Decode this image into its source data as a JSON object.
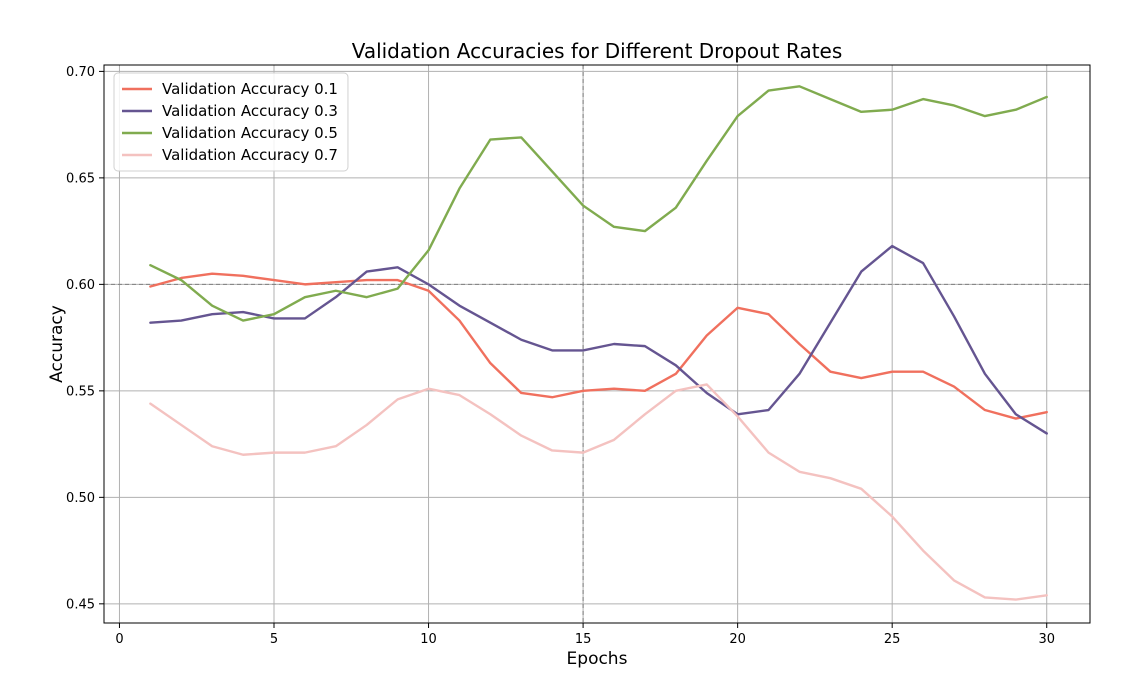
{
  "chart_data": {
    "type": "line",
    "title": "Validation Accuracies for Different Dropout Rates",
    "xlabel": "Epochs",
    "ylabel": "Accuracy",
    "xlim": [
      -0.5,
      31.4
    ],
    "ylim": [
      0.441,
      0.703
    ],
    "xticks": [
      0,
      5,
      10,
      15,
      20,
      25,
      30
    ],
    "yticks": [
      0.45,
      0.5,
      0.55,
      0.6,
      0.65,
      0.7
    ],
    "xtick_labels": [
      "0",
      "5",
      "10",
      "15",
      "20",
      "25",
      "30"
    ],
    "ytick_labels": [
      "0.45",
      "0.50",
      "0.55",
      "0.60",
      "0.65",
      "0.70"
    ],
    "grid": true,
    "reference_lines": {
      "x": 15,
      "y": 0.6
    },
    "legend_position": "top-left",
    "x": [
      1,
      2,
      3,
      4,
      5,
      6,
      7,
      8,
      9,
      10,
      11,
      12,
      13,
      14,
      15,
      16,
      17,
      18,
      19,
      20,
      21,
      22,
      23,
      24,
      25,
      26,
      27,
      28,
      29,
      30
    ],
    "series": [
      {
        "name": "Validation Accuracy 0.1",
        "color": "#f0705e",
        "values": [
          0.599,
          0.603,
          0.605,
          0.604,
          0.602,
          0.6,
          0.601,
          0.602,
          0.602,
          0.597,
          0.583,
          0.563,
          0.549,
          0.547,
          0.55,
          0.551,
          0.55,
          0.558,
          0.576,
          0.589,
          0.586,
          0.572,
          0.559,
          0.556,
          0.559,
          0.559,
          0.552,
          0.541,
          0.537,
          0.54
        ]
      },
      {
        "name": "Validation Accuracy 0.3",
        "color": "#655591",
        "values": [
          0.582,
          0.583,
          0.586,
          0.587,
          0.584,
          0.584,
          0.594,
          0.606,
          0.608,
          0.6,
          0.59,
          0.582,
          0.574,
          0.569,
          0.569,
          0.572,
          0.571,
          0.562,
          0.549,
          0.539,
          0.541,
          0.558,
          0.582,
          0.606,
          0.618,
          0.61,
          0.585,
          0.558,
          0.539,
          0.53
        ]
      },
      {
        "name": "Validation Accuracy 0.5",
        "color": "#80ab4f",
        "values": [
          0.609,
          0.602,
          0.59,
          0.583,
          0.586,
          0.594,
          0.597,
          0.594,
          0.598,
          0.616,
          0.645,
          0.668,
          0.669,
          0.653,
          0.637,
          0.627,
          0.625,
          0.636,
          0.658,
          0.679,
          0.691,
          0.693,
          0.687,
          0.681,
          0.682,
          0.687,
          0.684,
          0.679,
          0.682,
          0.688
        ]
      },
      {
        "name": "Validation Accuracy 0.7",
        "color": "#f4c2c0",
        "values": [
          0.544,
          0.534,
          0.524,
          0.52,
          0.521,
          0.521,
          0.524,
          0.534,
          0.546,
          0.551,
          0.548,
          0.539,
          0.529,
          0.522,
          0.521,
          0.527,
          0.539,
          0.55,
          0.553,
          0.538,
          0.521,
          0.512,
          0.509,
          0.504,
          0.491,
          0.475,
          0.461,
          0.453,
          0.452,
          0.454
        ]
      }
    ]
  }
}
